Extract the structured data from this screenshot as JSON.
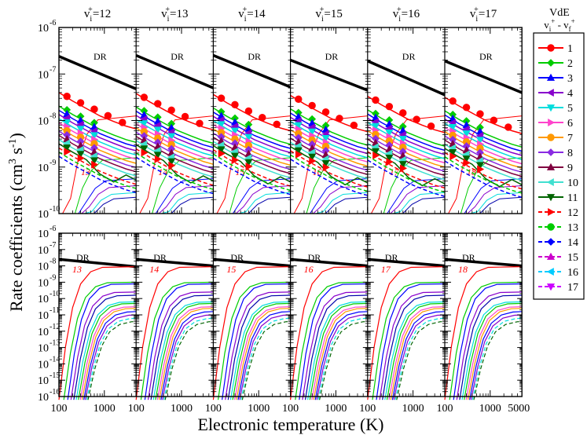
{
  "chart_data": {
    "type": "line",
    "y_label": "Rate coefficients (cm",
    "y_label_exp": "3",
    "y_label_mid": " s",
    "y_label_exp2": "-1",
    "y_label_end": ")",
    "x_label": "Electronic temperature (K)",
    "x_scale": "log",
    "xlim": [
      100,
      5000
    ],
    "x_ticks": [
      "100",
      "1000"
    ],
    "x_last_tick": "5000",
    "y_top": {
      "ylim_exp": [
        -10,
        -6
      ],
      "tick_labels": [
        "10",
        "10",
        "10",
        "10",
        "10"
      ],
      "tick_exps": [
        "-10",
        "-9",
        "-8",
        "-7",
        "-6"
      ]
    },
    "y_bottom": {
      "ylim_exp": [
        -16,
        -6
      ],
      "tick_labels": [
        "10",
        "10",
        "10",
        "10",
        "10",
        "10",
        "10",
        "10",
        "10",
        "10",
        "10"
      ],
      "tick_exps": [
        "-16",
        "-15",
        "-14",
        "-13",
        "-12",
        "-11",
        "-10",
        "-9",
        "-8",
        "-7",
        "-6"
      ]
    },
    "columns": [
      {
        "title_v": "v",
        "title_sub": "i",
        "title_sup": "+",
        "title_val": "=12",
        "threshold": "13"
      },
      {
        "title_v": "v",
        "title_sub": "i",
        "title_sup": "+",
        "title_val": "=13",
        "threshold": "14"
      },
      {
        "title_v": "v",
        "title_sub": "i",
        "title_sup": "+",
        "title_val": "=14",
        "threshold": "15"
      },
      {
        "title_v": "v",
        "title_sub": "i",
        "title_sup": "+",
        "title_val": "=15",
        "threshold": "16"
      },
      {
        "title_v": "v",
        "title_sub": "i",
        "title_sup": "+",
        "title_val": "=16",
        "threshold": "17"
      },
      {
        "title_v": "v",
        "title_sub": "i",
        "title_sup": "+",
        "title_val": "=17",
        "threshold": "18"
      }
    ],
    "dr_label": "DR",
    "dr_top": [
      [
        -6.62,
        -7.32
      ],
      [
        -6.6,
        -7.3
      ],
      [
        -6.6,
        -7.28
      ],
      [
        -6.7,
        -7.35
      ],
      [
        -6.72,
        -7.45
      ],
      [
        -6.72,
        -7.4
      ]
    ],
    "dr_bottom": [
      [
        -7.6,
        -8.05
      ],
      [
        -7.6,
        -8.0
      ],
      [
        -7.6,
        -8.0
      ],
      [
        -7.6,
        -8.0
      ],
      [
        -7.6,
        -8.0
      ],
      [
        -7.6,
        -8.0
      ]
    ],
    "legend": {
      "title": "VdE",
      "subtitle_a": "v",
      "subtitle_b": "v",
      "entries": [
        {
          "label": "1",
          "color": "#ff0000",
          "marker": "circle",
          "dash": false
        },
        {
          "label": "2",
          "color": "#00cc00",
          "marker": "diamond",
          "dash": false
        },
        {
          "label": "3",
          "color": "#0000ff",
          "marker": "triangle-up",
          "dash": false
        },
        {
          "label": "4",
          "color": "#8800cc",
          "marker": "triangle-left",
          "dash": false
        },
        {
          "label": "5",
          "color": "#00dddd",
          "marker": "triangle-down",
          "dash": false
        },
        {
          "label": "6",
          "color": "#ff44cc",
          "marker": "triangle-right",
          "dash": false
        },
        {
          "label": "7",
          "color": "#ff9900",
          "marker": "circle",
          "dash": false
        },
        {
          "label": "8",
          "color": "#8a2be2",
          "marker": "diamond",
          "dash": false
        },
        {
          "label": "9",
          "color": "#800040",
          "marker": "triangle-up",
          "dash": false
        },
        {
          "label": "10",
          "color": "#40e0d0",
          "marker": "triangle-left",
          "dash": false
        },
        {
          "label": "11",
          "color": "#006400",
          "marker": "triangle-down",
          "dash": false
        },
        {
          "label": "12",
          "color": "#ff0000",
          "marker": "triangle-right",
          "dash": true
        },
        {
          "label": "13",
          "color": "#00cc00",
          "marker": "circle",
          "dash": true
        },
        {
          "label": "14",
          "color": "#0000ff",
          "marker": "diamond",
          "dash": true
        },
        {
          "label": "15",
          "color": "#cc00cc",
          "marker": "triangle-up",
          "dash": true
        },
        {
          "label": "16",
          "color": "#00ccff",
          "marker": "triangle-left",
          "dash": true
        },
        {
          "label": "17",
          "color": "#cc00ff",
          "marker": "triangle-down",
          "dash": true
        }
      ]
    }
  }
}
